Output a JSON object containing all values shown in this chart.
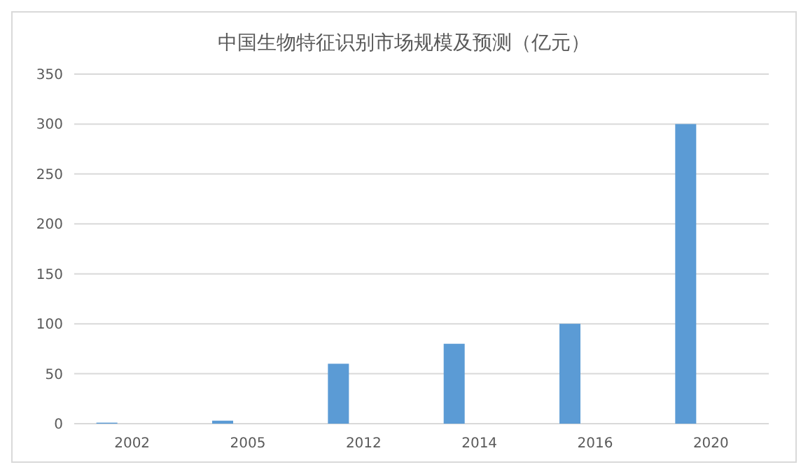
{
  "chart_data": {
    "type": "bar",
    "title": "中国生物特征识别市场规模及预测（亿元）",
    "categories": [
      "2002",
      "2005",
      "2012",
      "2014",
      "2016",
      "2020"
    ],
    "values": [
      1,
      3,
      60,
      80,
      100,
      300
    ],
    "color": "#5b9bd5",
    "ylim": [
      0,
      350
    ],
    "yticks": [
      0,
      50,
      100,
      150,
      200,
      250,
      300,
      350
    ],
    "grid": "y"
  }
}
